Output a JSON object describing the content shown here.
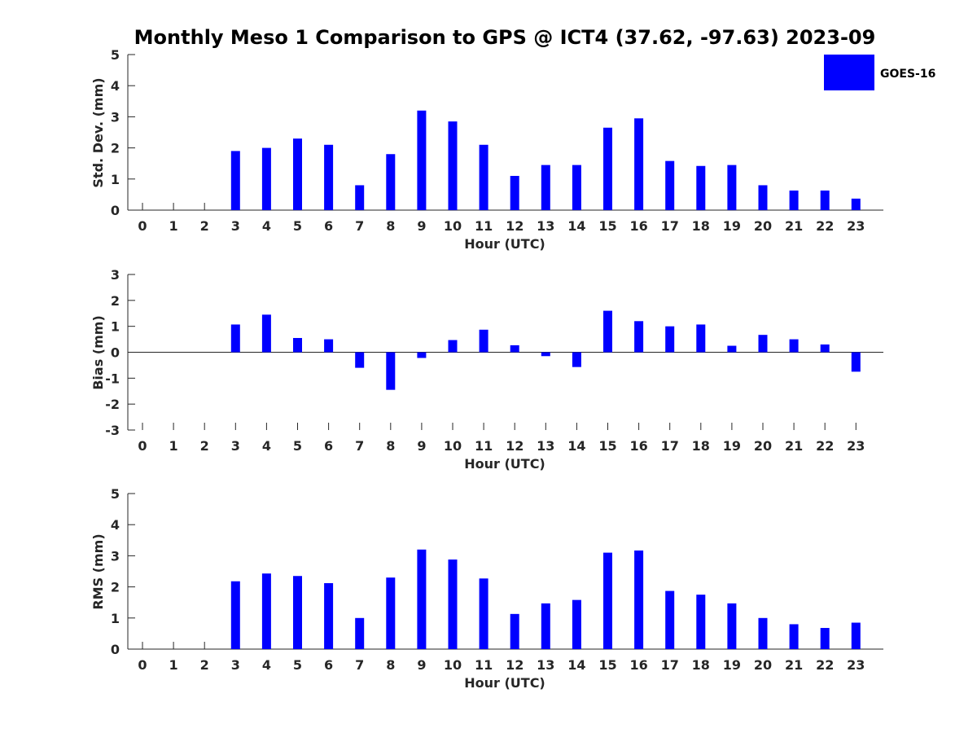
{
  "title": "Monthly Meso 1 Comparison to GPS @ ICT4 (37.62, -97.63) 2023-09",
  "legend": {
    "label": "GOES-16",
    "color": "#0000ff",
    "placement": "top-right"
  },
  "chart_data": [
    {
      "type": "bar",
      "ylabel": "Std. Dev. (mm)",
      "xlabel": "Hour (UTC)",
      "ylim": [
        0,
        5
      ],
      "yticks": [
        "0",
        "1",
        "2",
        "3",
        "4",
        "5"
      ],
      "categories": [
        "0",
        "1",
        "2",
        "3",
        "4",
        "5",
        "6",
        "7",
        "8",
        "9",
        "10",
        "11",
        "12",
        "13",
        "14",
        "15",
        "16",
        "17",
        "18",
        "19",
        "20",
        "21",
        "22",
        "23"
      ],
      "series": [
        {
          "name": "GOES-16",
          "color": "#0000ff",
          "values": [
            null,
            null,
            null,
            1.9,
            2.0,
            2.3,
            2.1,
            0.8,
            1.8,
            3.2,
            2.85,
            2.1,
            1.1,
            1.45,
            1.45,
            2.65,
            2.95,
            1.58,
            1.42,
            1.45,
            0.8,
            0.63,
            0.63,
            0.37
          ]
        }
      ]
    },
    {
      "type": "bar",
      "ylabel": "Bias (mm)",
      "xlabel": "Hour (UTC)",
      "ylim": [
        -3,
        3
      ],
      "yticks": [
        "-3",
        "-2",
        "-1",
        "0",
        "1",
        "2",
        "3"
      ],
      "categories": [
        "0",
        "1",
        "2",
        "3",
        "4",
        "5",
        "6",
        "7",
        "8",
        "9",
        "10",
        "11",
        "12",
        "13",
        "14",
        "15",
        "16",
        "17",
        "18",
        "19",
        "20",
        "21",
        "22",
        "23"
      ],
      "series": [
        {
          "name": "GOES-16",
          "color": "#0000ff",
          "values": [
            null,
            null,
            null,
            1.07,
            1.45,
            0.55,
            0.5,
            -0.6,
            -1.45,
            -0.22,
            0.47,
            0.87,
            0.27,
            -0.15,
            -0.57,
            1.6,
            1.2,
            1.0,
            1.07,
            0.25,
            0.67,
            0.5,
            0.3,
            -0.75
          ]
        }
      ]
    },
    {
      "type": "bar",
      "ylabel": "RMS (mm)",
      "xlabel": "Hour (UTC)",
      "ylim": [
        0,
        5
      ],
      "yticks": [
        "0",
        "1",
        "2",
        "3",
        "4",
        "5"
      ],
      "categories": [
        "0",
        "1",
        "2",
        "3",
        "4",
        "5",
        "6",
        "7",
        "8",
        "9",
        "10",
        "11",
        "12",
        "13",
        "14",
        "15",
        "16",
        "17",
        "18",
        "19",
        "20",
        "21",
        "22",
        "23"
      ],
      "series": [
        {
          "name": "GOES-16",
          "color": "#0000ff",
          "values": [
            null,
            null,
            null,
            2.18,
            2.43,
            2.35,
            2.12,
            1.0,
            2.3,
            3.2,
            2.88,
            2.27,
            1.13,
            1.47,
            1.58,
            3.1,
            3.17,
            1.87,
            1.75,
            1.47,
            1.0,
            0.8,
            0.68,
            0.85
          ]
        }
      ]
    }
  ]
}
